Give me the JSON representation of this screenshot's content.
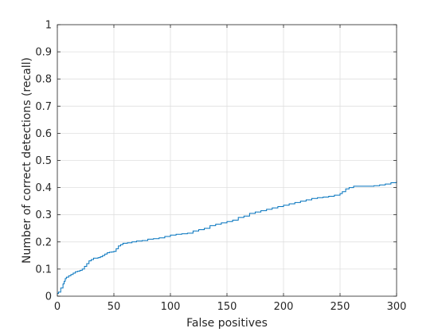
{
  "chart_data": {
    "type": "line",
    "title": "",
    "xlabel": "False positives",
    "ylabel": "Number of correct detections (recall)",
    "xlim": [
      0,
      300
    ],
    "ylim": [
      0,
      1
    ],
    "x_ticks": [
      0,
      50,
      100,
      150,
      200,
      250,
      300
    ],
    "x_tick_labels": [
      "0",
      "50",
      "100",
      "150",
      "200",
      "250",
      "300"
    ],
    "y_ticks": [
      0,
      0.1,
      0.2,
      0.3,
      0.4,
      0.5,
      0.6,
      0.7,
      0.8,
      0.9,
      1
    ],
    "y_tick_labels": [
      "0",
      "0.1",
      "0.2",
      "0.3",
      "0.4",
      "0.5",
      "0.6",
      "0.7",
      "0.8",
      "0.9",
      "1"
    ],
    "grid": true,
    "step": true,
    "series": [
      {
        "color": "#0072bd",
        "x": [
          0,
          1,
          3,
          5,
          6,
          7,
          8,
          10,
          12,
          14,
          16,
          18,
          20,
          22,
          24,
          26,
          28,
          30,
          32,
          34,
          36,
          38,
          40,
          42,
          44,
          46,
          48,
          50,
          52,
          54,
          56,
          58,
          62,
          66,
          70,
          75,
          80,
          85,
          90,
          95,
          100,
          105,
          110,
          115,
          120,
          125,
          130,
          135,
          140,
          145,
          150,
          155,
          160,
          165,
          170,
          175,
          180,
          185,
          190,
          195,
          200,
          205,
          210,
          215,
          220,
          225,
          230,
          235,
          240,
          245,
          250,
          252,
          255,
          258,
          262,
          270,
          280,
          285,
          290,
          295,
          300
        ],
        "y": [
          0.01,
          0.015,
          0.03,
          0.045,
          0.055,
          0.065,
          0.07,
          0.075,
          0.08,
          0.085,
          0.09,
          0.092,
          0.095,
          0.1,
          0.11,
          0.12,
          0.13,
          0.135,
          0.14,
          0.14,
          0.142,
          0.145,
          0.15,
          0.155,
          0.16,
          0.162,
          0.163,
          0.165,
          0.175,
          0.185,
          0.19,
          0.195,
          0.197,
          0.2,
          0.203,
          0.205,
          0.21,
          0.212,
          0.215,
          0.22,
          0.225,
          0.228,
          0.23,
          0.232,
          0.24,
          0.245,
          0.25,
          0.26,
          0.265,
          0.27,
          0.275,
          0.28,
          0.29,
          0.295,
          0.305,
          0.31,
          0.315,
          0.32,
          0.325,
          0.33,
          0.335,
          0.34,
          0.345,
          0.35,
          0.355,
          0.36,
          0.363,
          0.365,
          0.368,
          0.372,
          0.378,
          0.385,
          0.395,
          0.4,
          0.405,
          0.405,
          0.407,
          0.41,
          0.413,
          0.418,
          0.425
        ]
      }
    ]
  }
}
